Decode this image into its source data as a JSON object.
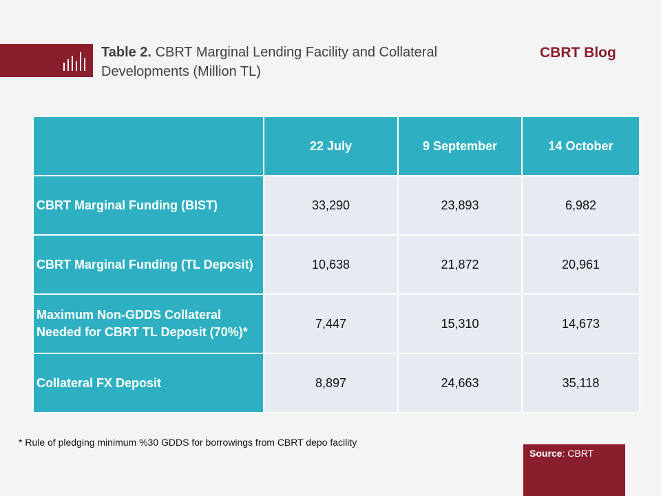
{
  "header": {
    "title_bold": "Table 2.",
    "title_rest": "CBRT Marginal Lending Facility and Collateral Developments (Million TL)",
    "blog": "CBRT Blog",
    "icon": "bar-chart-icon",
    "accent_color": "#8a1e2d",
    "table_color": "#2fb0c2"
  },
  "table": {
    "columns": [
      "22 July",
      "9 September",
      "14 October"
    ],
    "rows": [
      {
        "label": "CBRT Marginal Funding (BIST)",
        "values": [
          "33,290",
          "23,893",
          "6,982"
        ]
      },
      {
        "label": "CBRT Marginal Funding (TL Deposit)",
        "values": [
          "10,638",
          "21,872",
          "20,961"
        ]
      },
      {
        "label": "Maximum Non-GDDS Collateral Needed for CBRT TL Deposit (70%)*",
        "values": [
          "7,447",
          "15,310",
          "14,673"
        ]
      },
      {
        "label": "Collateral FX Deposit",
        "values": [
          "8,897",
          "24,663",
          "35,118"
        ]
      }
    ]
  },
  "footnote": "* Rule of pledging minimum %30 GDDS for borrowings from CBRT depo facility",
  "source": {
    "label": "Source",
    "value": ": CBRT"
  }
}
